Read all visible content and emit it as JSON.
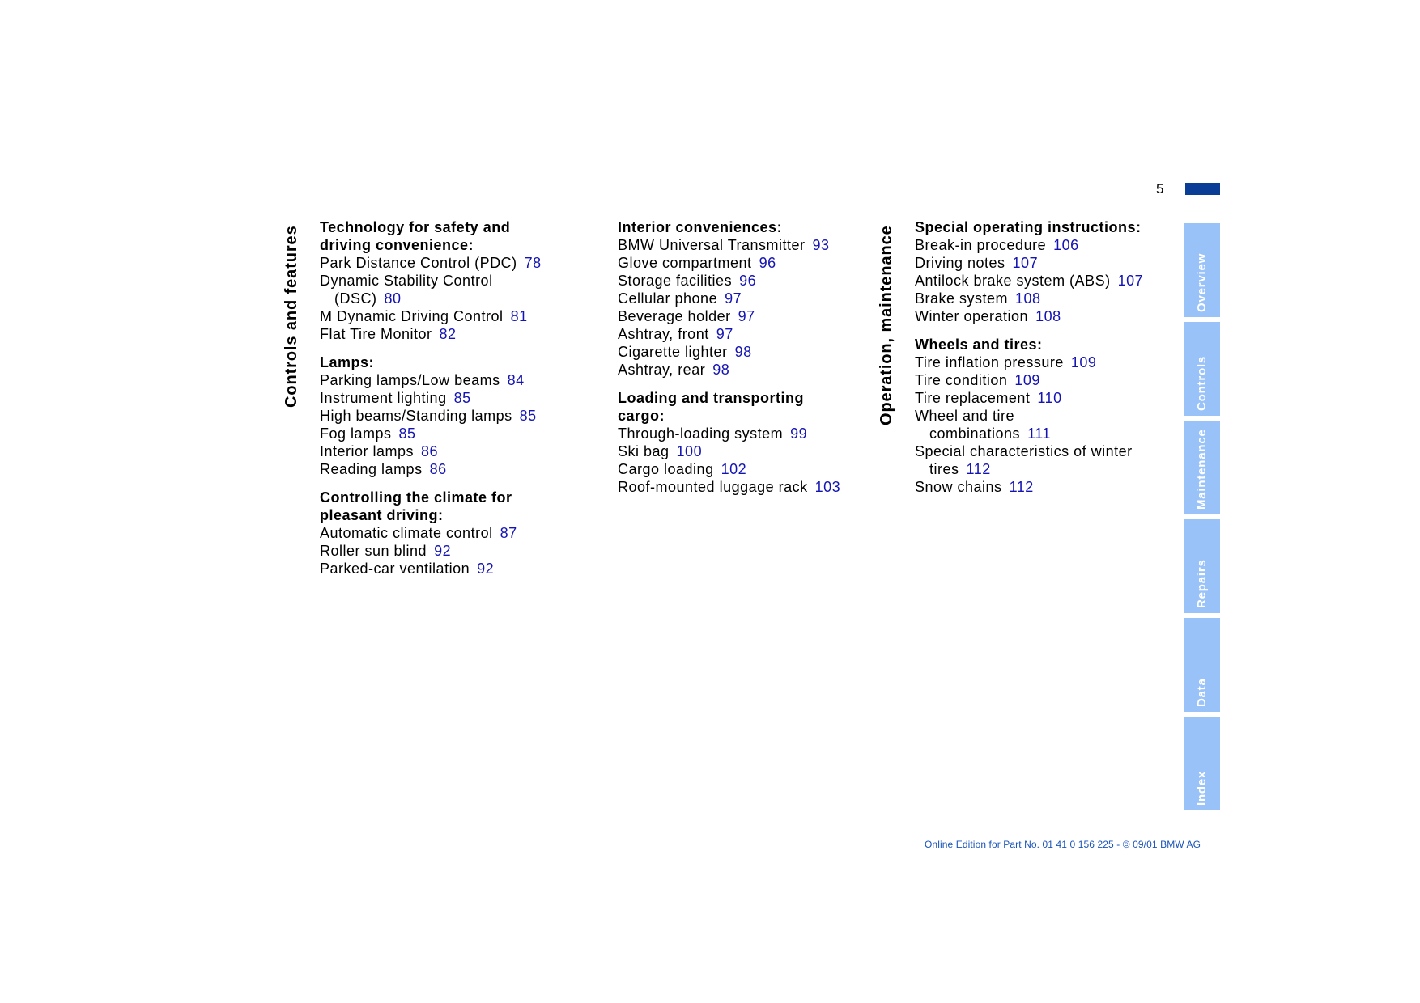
{
  "page": {
    "number": "5"
  },
  "left_column_title": "Controls and features",
  "right_column_title": "Operation, maintenance",
  "col1": {
    "sec1": {
      "heading_line1": "Technology for safety and",
      "heading_line2": "driving convenience:",
      "e1_text": "Park Distance Control (PDC)",
      "e1_page": "78",
      "e2_text": "Dynamic Stability Control",
      "e2_cont": "(DSC)",
      "e2_page": "80",
      "e3_text": "M Dynamic Driving Control",
      "e3_page": "81",
      "e4_text": "Flat Tire Monitor",
      "e4_page": "82"
    },
    "sec2": {
      "heading": "Lamps:",
      "e1_text": "Parking lamps/Low beams",
      "e1_page": "84",
      "e2_text": "Instrument lighting",
      "e2_page": "85",
      "e3_text": "High beams/Standing lamps",
      "e3_page": "85",
      "e4_text": "Fog lamps",
      "e4_page": "85",
      "e5_text": "Interior lamps",
      "e5_page": "86",
      "e6_text": "Reading lamps",
      "e6_page": "86"
    },
    "sec3": {
      "heading_line1": "Controlling the climate for",
      "heading_line2": "pleasant driving:",
      "e1_text": "Automatic climate control",
      "e1_page": "87",
      "e2_text": "Roller sun blind",
      "e2_page": "92",
      "e3_text": "Parked-car ventilation",
      "e3_page": "92"
    }
  },
  "col2": {
    "sec1": {
      "heading": "Interior conveniences:",
      "e1_text": "BMW Universal Transmitter",
      "e1_page": "93",
      "e2_text": "Glove compartment",
      "e2_page": "96",
      "e3_text": "Storage facilities",
      "e3_page": "96",
      "e4_text": "Cellular phone",
      "e4_page": "97",
      "e5_text": "Beverage holder",
      "e5_page": "97",
      "e6_text": "Ashtray, front",
      "e6_page": "97",
      "e7_text": "Cigarette lighter",
      "e7_page": "98",
      "e8_text": "Ashtray, rear",
      "e8_page": "98"
    },
    "sec2": {
      "heading_line1": "Loading and transporting",
      "heading_line2": "cargo:",
      "e1_text": "Through-loading system",
      "e1_page": "99",
      "e2_text": "Ski bag",
      "e2_page": "100",
      "e3_text": "Cargo loading",
      "e3_page": "102",
      "e4_text": "Roof-mounted luggage rack",
      "e4_page": "103"
    }
  },
  "col3": {
    "sec1": {
      "heading": "Special operating instructions:",
      "e1_text": "Break-in procedure",
      "e1_page": "106",
      "e2_text": "Driving notes",
      "e2_page": "107",
      "e3_text": "Antilock brake system (ABS)",
      "e3_page": "107",
      "e4_text": "Brake system",
      "e4_page": "108",
      "e5_text": "Winter operation",
      "e5_page": "108"
    },
    "sec2": {
      "heading": "Wheels and tires:",
      "e1_text": "Tire inflation pressure",
      "e1_page": "109",
      "e2_text": "Tire condition",
      "e2_page": "109",
      "e3_text": "Tire replacement",
      "e3_page": "110",
      "e4_text": "Wheel and tire",
      "e4_cont": "combinations",
      "e4_page": "111",
      "e5_text": "Special characteristics of winter",
      "e5_cont": "tires",
      "e5_page": "112",
      "e6_text": "Snow chains",
      "e6_page": "112"
    }
  },
  "tabs": {
    "overview": "Overview",
    "controls": "Controls",
    "maintenance": "Maintenance",
    "repairs": "Repairs",
    "data": "Data",
    "index": "Index"
  },
  "footer": "Online Edition for Part No. 01 41 0 156 225 - © 09/01 BMW AG",
  "colors": {
    "accent_blue": "#0a3e96",
    "tab_blue": "#99c2f8",
    "page_ref_blue": "#1414b4",
    "footer_blue": "#1a54b8"
  }
}
